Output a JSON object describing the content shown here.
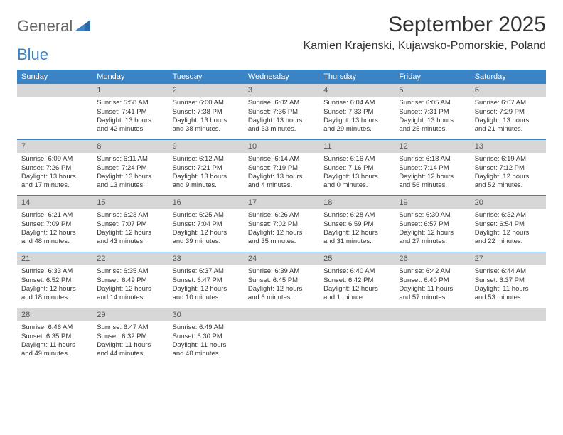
{
  "logo": {
    "text1": "General",
    "text2": "Blue"
  },
  "title": "September 2025",
  "location": "Kamien Krajenski, Kujawsko-Pomorskie, Poland",
  "colors": {
    "header_bg": "#3a84c6",
    "header_text": "#ffffff",
    "daynum_bg": "#d7d7d7",
    "daynum_text": "#555555",
    "body_text": "#333333",
    "rule": "#3a84c6",
    "page_bg": "#ffffff"
  },
  "fonts": {
    "title_size": 30,
    "location_size": 16,
    "weekday_size": 11,
    "body_size": 9.5
  },
  "weekdays": [
    "Sunday",
    "Monday",
    "Tuesday",
    "Wednesday",
    "Thursday",
    "Friday",
    "Saturday"
  ],
  "weeks": [
    [
      {
        "n": "",
        "sr": "",
        "ss": "",
        "dl": ""
      },
      {
        "n": "1",
        "sr": "Sunrise: 5:58 AM",
        "ss": "Sunset: 7:41 PM",
        "dl": "Daylight: 13 hours and 42 minutes."
      },
      {
        "n": "2",
        "sr": "Sunrise: 6:00 AM",
        "ss": "Sunset: 7:38 PM",
        "dl": "Daylight: 13 hours and 38 minutes."
      },
      {
        "n": "3",
        "sr": "Sunrise: 6:02 AM",
        "ss": "Sunset: 7:36 PM",
        "dl": "Daylight: 13 hours and 33 minutes."
      },
      {
        "n": "4",
        "sr": "Sunrise: 6:04 AM",
        "ss": "Sunset: 7:33 PM",
        "dl": "Daylight: 13 hours and 29 minutes."
      },
      {
        "n": "5",
        "sr": "Sunrise: 6:05 AM",
        "ss": "Sunset: 7:31 PM",
        "dl": "Daylight: 13 hours and 25 minutes."
      },
      {
        "n": "6",
        "sr": "Sunrise: 6:07 AM",
        "ss": "Sunset: 7:29 PM",
        "dl": "Daylight: 13 hours and 21 minutes."
      }
    ],
    [
      {
        "n": "7",
        "sr": "Sunrise: 6:09 AM",
        "ss": "Sunset: 7:26 PM",
        "dl": "Daylight: 13 hours and 17 minutes."
      },
      {
        "n": "8",
        "sr": "Sunrise: 6:11 AM",
        "ss": "Sunset: 7:24 PM",
        "dl": "Daylight: 13 hours and 13 minutes."
      },
      {
        "n": "9",
        "sr": "Sunrise: 6:12 AM",
        "ss": "Sunset: 7:21 PM",
        "dl": "Daylight: 13 hours and 9 minutes."
      },
      {
        "n": "10",
        "sr": "Sunrise: 6:14 AM",
        "ss": "Sunset: 7:19 PM",
        "dl": "Daylight: 13 hours and 4 minutes."
      },
      {
        "n": "11",
        "sr": "Sunrise: 6:16 AM",
        "ss": "Sunset: 7:16 PM",
        "dl": "Daylight: 13 hours and 0 minutes."
      },
      {
        "n": "12",
        "sr": "Sunrise: 6:18 AM",
        "ss": "Sunset: 7:14 PM",
        "dl": "Daylight: 12 hours and 56 minutes."
      },
      {
        "n": "13",
        "sr": "Sunrise: 6:19 AM",
        "ss": "Sunset: 7:12 PM",
        "dl": "Daylight: 12 hours and 52 minutes."
      }
    ],
    [
      {
        "n": "14",
        "sr": "Sunrise: 6:21 AM",
        "ss": "Sunset: 7:09 PM",
        "dl": "Daylight: 12 hours and 48 minutes."
      },
      {
        "n": "15",
        "sr": "Sunrise: 6:23 AM",
        "ss": "Sunset: 7:07 PM",
        "dl": "Daylight: 12 hours and 43 minutes."
      },
      {
        "n": "16",
        "sr": "Sunrise: 6:25 AM",
        "ss": "Sunset: 7:04 PM",
        "dl": "Daylight: 12 hours and 39 minutes."
      },
      {
        "n": "17",
        "sr": "Sunrise: 6:26 AM",
        "ss": "Sunset: 7:02 PM",
        "dl": "Daylight: 12 hours and 35 minutes."
      },
      {
        "n": "18",
        "sr": "Sunrise: 6:28 AM",
        "ss": "Sunset: 6:59 PM",
        "dl": "Daylight: 12 hours and 31 minutes."
      },
      {
        "n": "19",
        "sr": "Sunrise: 6:30 AM",
        "ss": "Sunset: 6:57 PM",
        "dl": "Daylight: 12 hours and 27 minutes."
      },
      {
        "n": "20",
        "sr": "Sunrise: 6:32 AM",
        "ss": "Sunset: 6:54 PM",
        "dl": "Daylight: 12 hours and 22 minutes."
      }
    ],
    [
      {
        "n": "21",
        "sr": "Sunrise: 6:33 AM",
        "ss": "Sunset: 6:52 PM",
        "dl": "Daylight: 12 hours and 18 minutes."
      },
      {
        "n": "22",
        "sr": "Sunrise: 6:35 AM",
        "ss": "Sunset: 6:49 PM",
        "dl": "Daylight: 12 hours and 14 minutes."
      },
      {
        "n": "23",
        "sr": "Sunrise: 6:37 AM",
        "ss": "Sunset: 6:47 PM",
        "dl": "Daylight: 12 hours and 10 minutes."
      },
      {
        "n": "24",
        "sr": "Sunrise: 6:39 AM",
        "ss": "Sunset: 6:45 PM",
        "dl": "Daylight: 12 hours and 6 minutes."
      },
      {
        "n": "25",
        "sr": "Sunrise: 6:40 AM",
        "ss": "Sunset: 6:42 PM",
        "dl": "Daylight: 12 hours and 1 minute."
      },
      {
        "n": "26",
        "sr": "Sunrise: 6:42 AM",
        "ss": "Sunset: 6:40 PM",
        "dl": "Daylight: 11 hours and 57 minutes."
      },
      {
        "n": "27",
        "sr": "Sunrise: 6:44 AM",
        "ss": "Sunset: 6:37 PM",
        "dl": "Daylight: 11 hours and 53 minutes."
      }
    ],
    [
      {
        "n": "28",
        "sr": "Sunrise: 6:46 AM",
        "ss": "Sunset: 6:35 PM",
        "dl": "Daylight: 11 hours and 49 minutes."
      },
      {
        "n": "29",
        "sr": "Sunrise: 6:47 AM",
        "ss": "Sunset: 6:32 PM",
        "dl": "Daylight: 11 hours and 44 minutes."
      },
      {
        "n": "30",
        "sr": "Sunrise: 6:49 AM",
        "ss": "Sunset: 6:30 PM",
        "dl": "Daylight: 11 hours and 40 minutes."
      },
      {
        "n": "",
        "sr": "",
        "ss": "",
        "dl": ""
      },
      {
        "n": "",
        "sr": "",
        "ss": "",
        "dl": ""
      },
      {
        "n": "",
        "sr": "",
        "ss": "",
        "dl": ""
      },
      {
        "n": "",
        "sr": "",
        "ss": "",
        "dl": ""
      }
    ]
  ]
}
